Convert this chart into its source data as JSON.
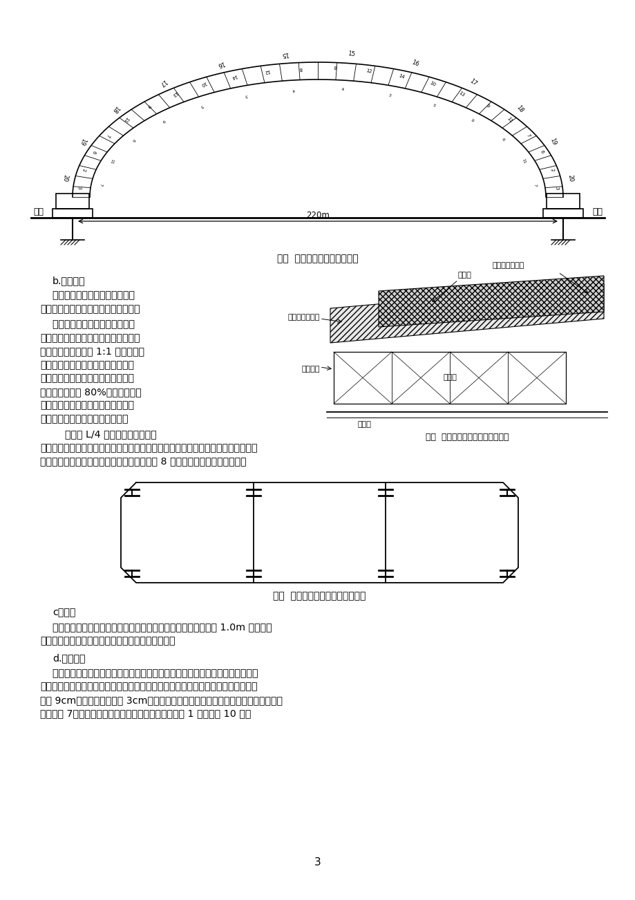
{
  "page_width": 9.2,
  "page_height": 13.02,
  "dpi": 100,
  "bg": "#ffffff",
  "fig4_title": "图四  拱圈浇筑节段划分示意图",
  "fig5_title": "图五  拱圈浇筑分段示意图（局部）",
  "fig6_title": "图六  拱段间隔槽增加防滑工字钉图",
  "span_label": "220m",
  "left_pier": "拱座",
  "right_pier": "拱座",
  "b_section_title": "b.操作要点",
  "para1": [
    "    混凝土浇注时采取水平移动，向",
    "拱顶方向推进、上下分层的方法浇注。"
  ],
  "para2": [
    "    浇注拱脚混凝土前，将其与拱座",
    "的新旧混凝土接合处凿毛，冲刷干净，",
    "并用水湿润再布薄层 1:1 水泥砂浆；",
    "拱圈预留间隔槽中混凝土，待所有各",
    "分段混凝土均灸注完毕，且其相邻段",
    "混凝土强度达到 80%后方可灸筑，",
    "灸筑前将分段混凝土表面凿毛冲净，",
    "残留混凝土清理干净后绑扎钉筋。"
  ],
  "para3a": "    拱脚至 L/4 截面，由于拱轴线的",
  "para3b": [
    "倾角较大，拱段自重将导致下滑分力，拱段防滑措施主要在上、下两拱段之间（间隔",
    "槽）预埋工字鑉的方法解决，每个间隔槽预埋 8 根工字鑉，具体情况见图六。"
  ],
  "fig5_labels": {
    "jian_ge_cao": "间隔槽",
    "zhu_gong_top": "主拱圈分段浇筑",
    "zhu_gong_mid": "主拱圈分段浇筑",
    "wan_kou": "碗扎支架",
    "jun_yong_jia": "军用架",
    "jun_yong_dun": "军用崩"
  },
  "c_title": "c．合龙",
  "c_para": [
    "    采用拱脚合龙方式，半幅桥两拱脚浇注段与拱跨浇注段间各预留 1.0m 合龙段，",
    "全截面一次合龙成拱。合龙段混凝土掺加微膨胀剂。"
  ],
  "d_title": "d.支架卸落",
  "d_para": [
    "    采用碗扎支架顶端可调托撑卸架装置，分次分批顺序卸落。施工支架总卸落量由",
    "两部分组成，即主拱圈裸拱的弹性变形量与拱架的弹性变形量之和，计算拱顶最大卸",
    "落量 9cm，分三次每次卸落 3cm，拱架卸落顺序为横桥向同步，顺桥向从拱顶到拱脚",
    "对称见图 7。卸落操作最少两个工作班组，每个卸落点 1 人即每班 10 人。"
  ],
  "page_num": "3"
}
